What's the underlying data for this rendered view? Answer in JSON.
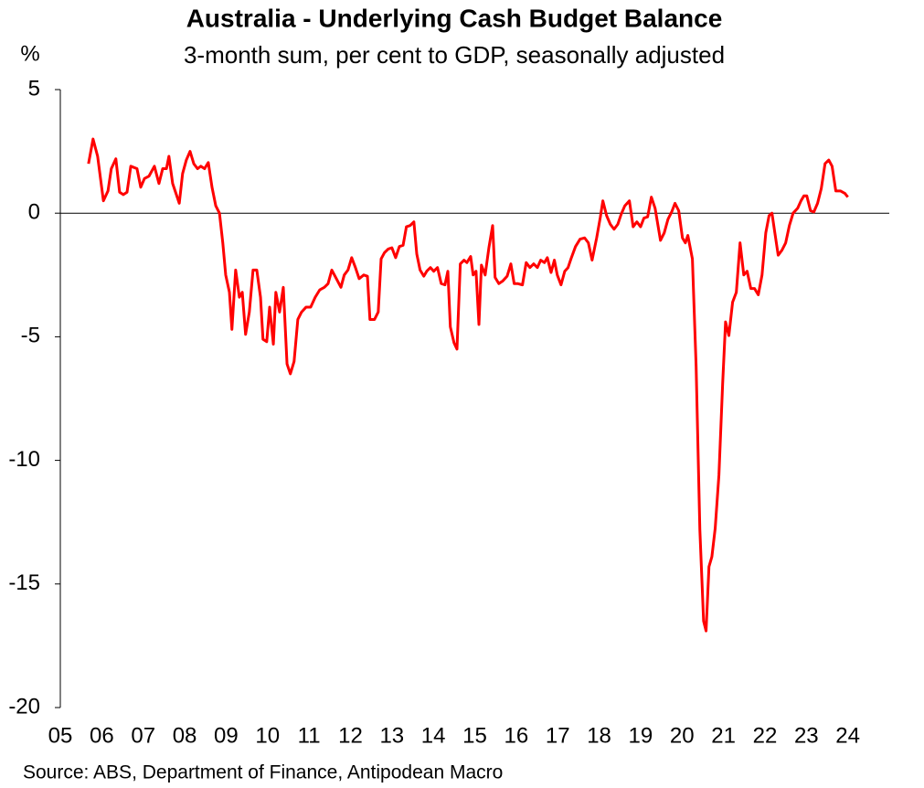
{
  "chart_data": {
    "type": "line",
    "title": "Australia - Underlying Cash Budget Balance",
    "subtitle": "3-month sum, per cent to GDP, seasonally adjusted",
    "y_label": "%",
    "source": "Source: ABS, Department of Finance, Antipodean Macro",
    "xlim": [
      2005,
      2025
    ],
    "ylim": [
      -20,
      5
    ],
    "yticks": [
      5,
      0,
      -5,
      -10,
      -15,
      -20
    ],
    "xticks": [
      {
        "value": 2005,
        "label": "05"
      },
      {
        "value": 2006,
        "label": "06"
      },
      {
        "value": 2007,
        "label": "07"
      },
      {
        "value": 2008,
        "label": "08"
      },
      {
        "value": 2009,
        "label": "09"
      },
      {
        "value": 2010,
        "label": "10"
      },
      {
        "value": 2011,
        "label": "11"
      },
      {
        "value": 2012,
        "label": "12"
      },
      {
        "value": 2013,
        "label": "13"
      },
      {
        "value": 2014,
        "label": "14"
      },
      {
        "value": 2015,
        "label": "15"
      },
      {
        "value": 2016,
        "label": "16"
      },
      {
        "value": 2017,
        "label": "17"
      },
      {
        "value": 2018,
        "label": "18"
      },
      {
        "value": 2019,
        "label": "19"
      },
      {
        "value": 2020,
        "label": "20"
      },
      {
        "value": 2021,
        "label": "21"
      },
      {
        "value": 2022,
        "label": "22"
      },
      {
        "value": 2023,
        "label": "23"
      },
      {
        "value": 2024,
        "label": "24"
      }
    ],
    "x": [
      2005.68,
      2005.79,
      2005.9,
      2006.04,
      2006.15,
      2006.23,
      2006.34,
      2006.43,
      2006.52,
      2006.61,
      2006.7,
      2006.85,
      2006.94,
      2007.03,
      2007.14,
      2007.27,
      2007.38,
      2007.47,
      2007.56,
      2007.62,
      2007.71,
      2007.87,
      2007.95,
      2008.04,
      2008.13,
      2008.22,
      2008.31,
      2008.39,
      2008.48,
      2008.57,
      2008.66,
      2008.75,
      2008.84,
      2008.92,
      2008.99,
      2009.08,
      2009.14,
      2009.23,
      2009.32,
      2009.39,
      2009.47,
      2009.56,
      2009.65,
      2009.74,
      2009.83,
      2009.89,
      2009.98,
      2010.05,
      2010.14,
      2010.2,
      2010.29,
      2010.38,
      2010.47,
      2010.55,
      2010.64,
      2010.73,
      2010.82,
      2010.93,
      2011.04,
      2011.15,
      2011.26,
      2011.37,
      2011.46,
      2011.55,
      2011.66,
      2011.77,
      2011.85,
      2011.94,
      2012.03,
      2012.12,
      2012.21,
      2012.32,
      2012.41,
      2012.47,
      2012.58,
      2012.67,
      2012.74,
      2012.82,
      2012.91,
      2013.0,
      2013.09,
      2013.18,
      2013.27,
      2013.35,
      2013.44,
      2013.53,
      2013.6,
      2013.68,
      2013.77,
      2013.84,
      2013.93,
      2014.01,
      2014.1,
      2014.19,
      2014.28,
      2014.35,
      2014.41,
      2014.5,
      2014.57,
      2014.65,
      2014.74,
      2014.81,
      2014.9,
      2014.96,
      2015.03,
      2015.1,
      2015.16,
      2015.25,
      2015.34,
      2015.43,
      2015.49,
      2015.58,
      2015.67,
      2015.78,
      2015.87,
      2015.95,
      2016.04,
      2016.15,
      2016.24,
      2016.33,
      2016.42,
      2016.51,
      2016.59,
      2016.68,
      2016.75,
      2016.84,
      2016.92,
      2016.99,
      2017.08,
      2017.17,
      2017.25,
      2017.32,
      2017.43,
      2017.54,
      2017.65,
      2017.74,
      2017.83,
      2017.94,
      2018.03,
      2018.09,
      2018.18,
      2018.27,
      2018.36,
      2018.45,
      2018.53,
      2018.62,
      2018.73,
      2018.82,
      2018.91,
      2019.0,
      2019.08,
      2019.17,
      2019.26,
      2019.35,
      2019.48,
      2019.57,
      2019.66,
      2019.75,
      2019.83,
      2019.92,
      2020.01,
      2020.08,
      2020.14,
      2020.25,
      2020.34,
      2020.43,
      2020.52,
      2020.58,
      2020.65,
      2020.72,
      2020.8,
      2020.89,
      2020.98,
      2021.05,
      2021.13,
      2021.22,
      2021.31,
      2021.4,
      2021.49,
      2021.57,
      2021.66,
      2021.75,
      2021.84,
      2021.93,
      2022.02,
      2022.1,
      2022.17,
      2022.24,
      2022.32,
      2022.41,
      2022.5,
      2022.59,
      2022.68,
      2022.79,
      2022.87,
      2022.94,
      2023.01,
      2023.1,
      2023.18,
      2023.27,
      2023.36,
      2023.45,
      2023.54,
      2023.62,
      2023.71,
      2023.82,
      2023.93,
      2024.0
    ],
    "series": [
      {
        "name": "Underlying cash balance",
        "color": "#ff0000",
        "values": [
          2.0,
          3.0,
          2.3,
          0.5,
          0.9,
          1.8,
          2.2,
          0.85,
          0.75,
          0.85,
          1.9,
          1.8,
          1.05,
          1.4,
          1.5,
          1.9,
          1.2,
          1.8,
          1.8,
          2.3,
          1.2,
          0.4,
          1.6,
          2.15,
          2.5,
          2.0,
          1.8,
          1.9,
          1.8,
          2.05,
          1.05,
          0.3,
          0.0,
          -1.2,
          -2.5,
          -3.2,
          -4.7,
          -2.3,
          -3.4,
          -3.2,
          -4.9,
          -4.0,
          -2.3,
          -2.3,
          -3.4,
          -5.1,
          -5.2,
          -3.8,
          -5.3,
          -3.2,
          -4.0,
          -3.0,
          -6.1,
          -6.5,
          -6.0,
          -4.3,
          -4.0,
          -3.8,
          -3.8,
          -3.4,
          -3.1,
          -3.0,
          -2.85,
          -2.3,
          -2.65,
          -3.0,
          -2.5,
          -2.3,
          -1.8,
          -2.2,
          -2.65,
          -2.5,
          -2.55,
          -4.3,
          -4.3,
          -4.0,
          -1.85,
          -1.6,
          -1.45,
          -1.4,
          -1.8,
          -1.35,
          -1.3,
          -0.55,
          -0.5,
          -0.35,
          -1.65,
          -2.3,
          -2.55,
          -2.35,
          -2.2,
          -2.35,
          -2.2,
          -2.85,
          -2.9,
          -2.35,
          -4.6,
          -5.25,
          -5.5,
          -2.05,
          -1.9,
          -2.0,
          -1.75,
          -2.5,
          -2.35,
          -4.5,
          -2.1,
          -2.5,
          -1.4,
          -0.5,
          -2.6,
          -2.85,
          -2.75,
          -2.55,
          -2.05,
          -2.85,
          -2.85,
          -2.9,
          -2.0,
          -2.2,
          -2.05,
          -2.2,
          -1.9,
          -2.0,
          -1.8,
          -2.4,
          -1.9,
          -2.5,
          -2.9,
          -2.35,
          -2.2,
          -1.85,
          -1.35,
          -1.05,
          -1.0,
          -1.2,
          -1.9,
          -1.0,
          -0.15,
          0.5,
          -0.1,
          -0.45,
          -0.65,
          -0.45,
          -0.05,
          0.3,
          0.5,
          -0.55,
          -0.35,
          -0.55,
          -0.2,
          -0.15,
          0.65,
          0.2,
          -1.1,
          -0.8,
          -0.25,
          0.05,
          0.4,
          0.1,
          -1.0,
          -1.2,
          -0.9,
          -1.85,
          -6.2,
          -12.8,
          -16.5,
          -16.9,
          -14.3,
          -13.9,
          -12.75,
          -10.6,
          -6.9,
          -4.4,
          -4.95,
          -3.6,
          -3.2,
          -1.2,
          -2.5,
          -2.35,
          -3.05,
          -3.05,
          -3.3,
          -2.5,
          -0.8,
          -0.1,
          0.0,
          -0.8,
          -1.7,
          -1.5,
          -1.2,
          -0.5,
          0.0,
          0.2,
          0.5,
          0.7,
          0.7,
          0.1,
          0.05,
          0.4,
          1.0,
          2.0,
          2.15,
          1.9,
          0.9,
          0.9,
          0.8,
          0.65
        ]
      }
    ]
  }
}
